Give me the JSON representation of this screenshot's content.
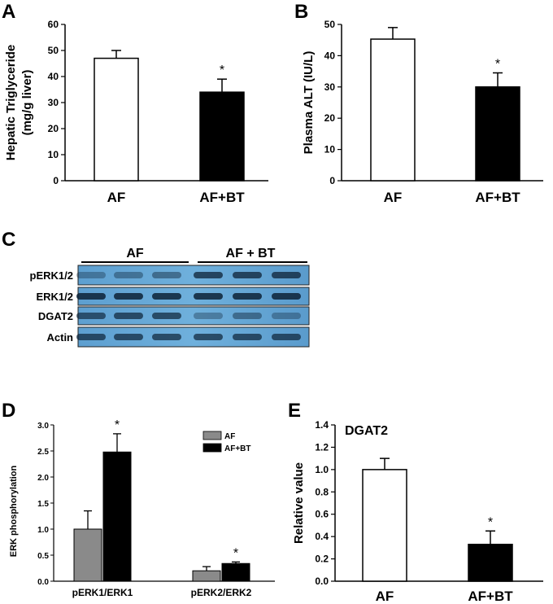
{
  "chart_data": [
    {
      "panel": "A",
      "type": "bar",
      "categories": [
        "AF",
        "AF+BT"
      ],
      "values": [
        47,
        34
      ],
      "errors": [
        3,
        5
      ],
      "ylabel": "Hepatic Triglyceride",
      "ylabel2": "(mg/g liver)",
      "ylim": [
        0,
        60
      ],
      "yticks": [
        0,
        10,
        20,
        30,
        40,
        50,
        60
      ],
      "significance": [
        "",
        "*"
      ],
      "colors": [
        "#ffffff",
        "#000000"
      ]
    },
    {
      "panel": "B",
      "type": "bar",
      "categories": [
        "AF",
        "AF+BT"
      ],
      "values": [
        45.3,
        30
      ],
      "errors": [
        3.7,
        4.5
      ],
      "ylabel": "Plasma ALT (IU/L)",
      "ylim": [
        0,
        50
      ],
      "yticks": [
        0,
        10,
        20,
        30,
        40,
        50
      ],
      "significance": [
        "",
        "*"
      ],
      "colors": [
        "#ffffff",
        "#000000"
      ]
    },
    {
      "panel": "D",
      "type": "bar",
      "categories": [
        "pERK1/ERK1",
        "pERK2/ERK2"
      ],
      "series": [
        {
          "name": "AF",
          "values": [
            1.0,
            0.2
          ],
          "errors": [
            0.35,
            0.08
          ],
          "color": "#8a8a8a"
        },
        {
          "name": "AF+BT",
          "values": [
            2.48,
            0.34
          ],
          "errors": [
            0.35,
            0.03
          ],
          "color": "#000000"
        }
      ],
      "ylabel": "ERK phosphorylation",
      "ylim": [
        0,
        3.0
      ],
      "yticks": [
        "0.0",
        "0.5",
        "1.0",
        "1.5",
        "2.0",
        "2.5",
        "3.0"
      ],
      "significance": [
        "*",
        "*"
      ],
      "legend_position": "top-right"
    },
    {
      "panel": "E",
      "type": "bar",
      "title": "DGAT2",
      "categories": [
        "AF",
        "AF+BT"
      ],
      "values": [
        1.0,
        0.33
      ],
      "errors": [
        0.1,
        0.12
      ],
      "ylabel": "Relative value",
      "ylim": [
        0,
        1.4
      ],
      "yticks": [
        "0.0",
        "0.2",
        "0.4",
        "0.6",
        "0.8",
        "1.0",
        "1.2",
        "1.4"
      ],
      "significance": [
        "",
        "*"
      ],
      "colors": [
        "#ffffff",
        "#000000"
      ]
    }
  ],
  "blot": {
    "panel": "C",
    "groups": [
      "AF",
      "AF + BT"
    ],
    "rows": [
      "pERK1/2",
      "ERK1/2",
      "DGAT2",
      "Actin"
    ]
  }
}
